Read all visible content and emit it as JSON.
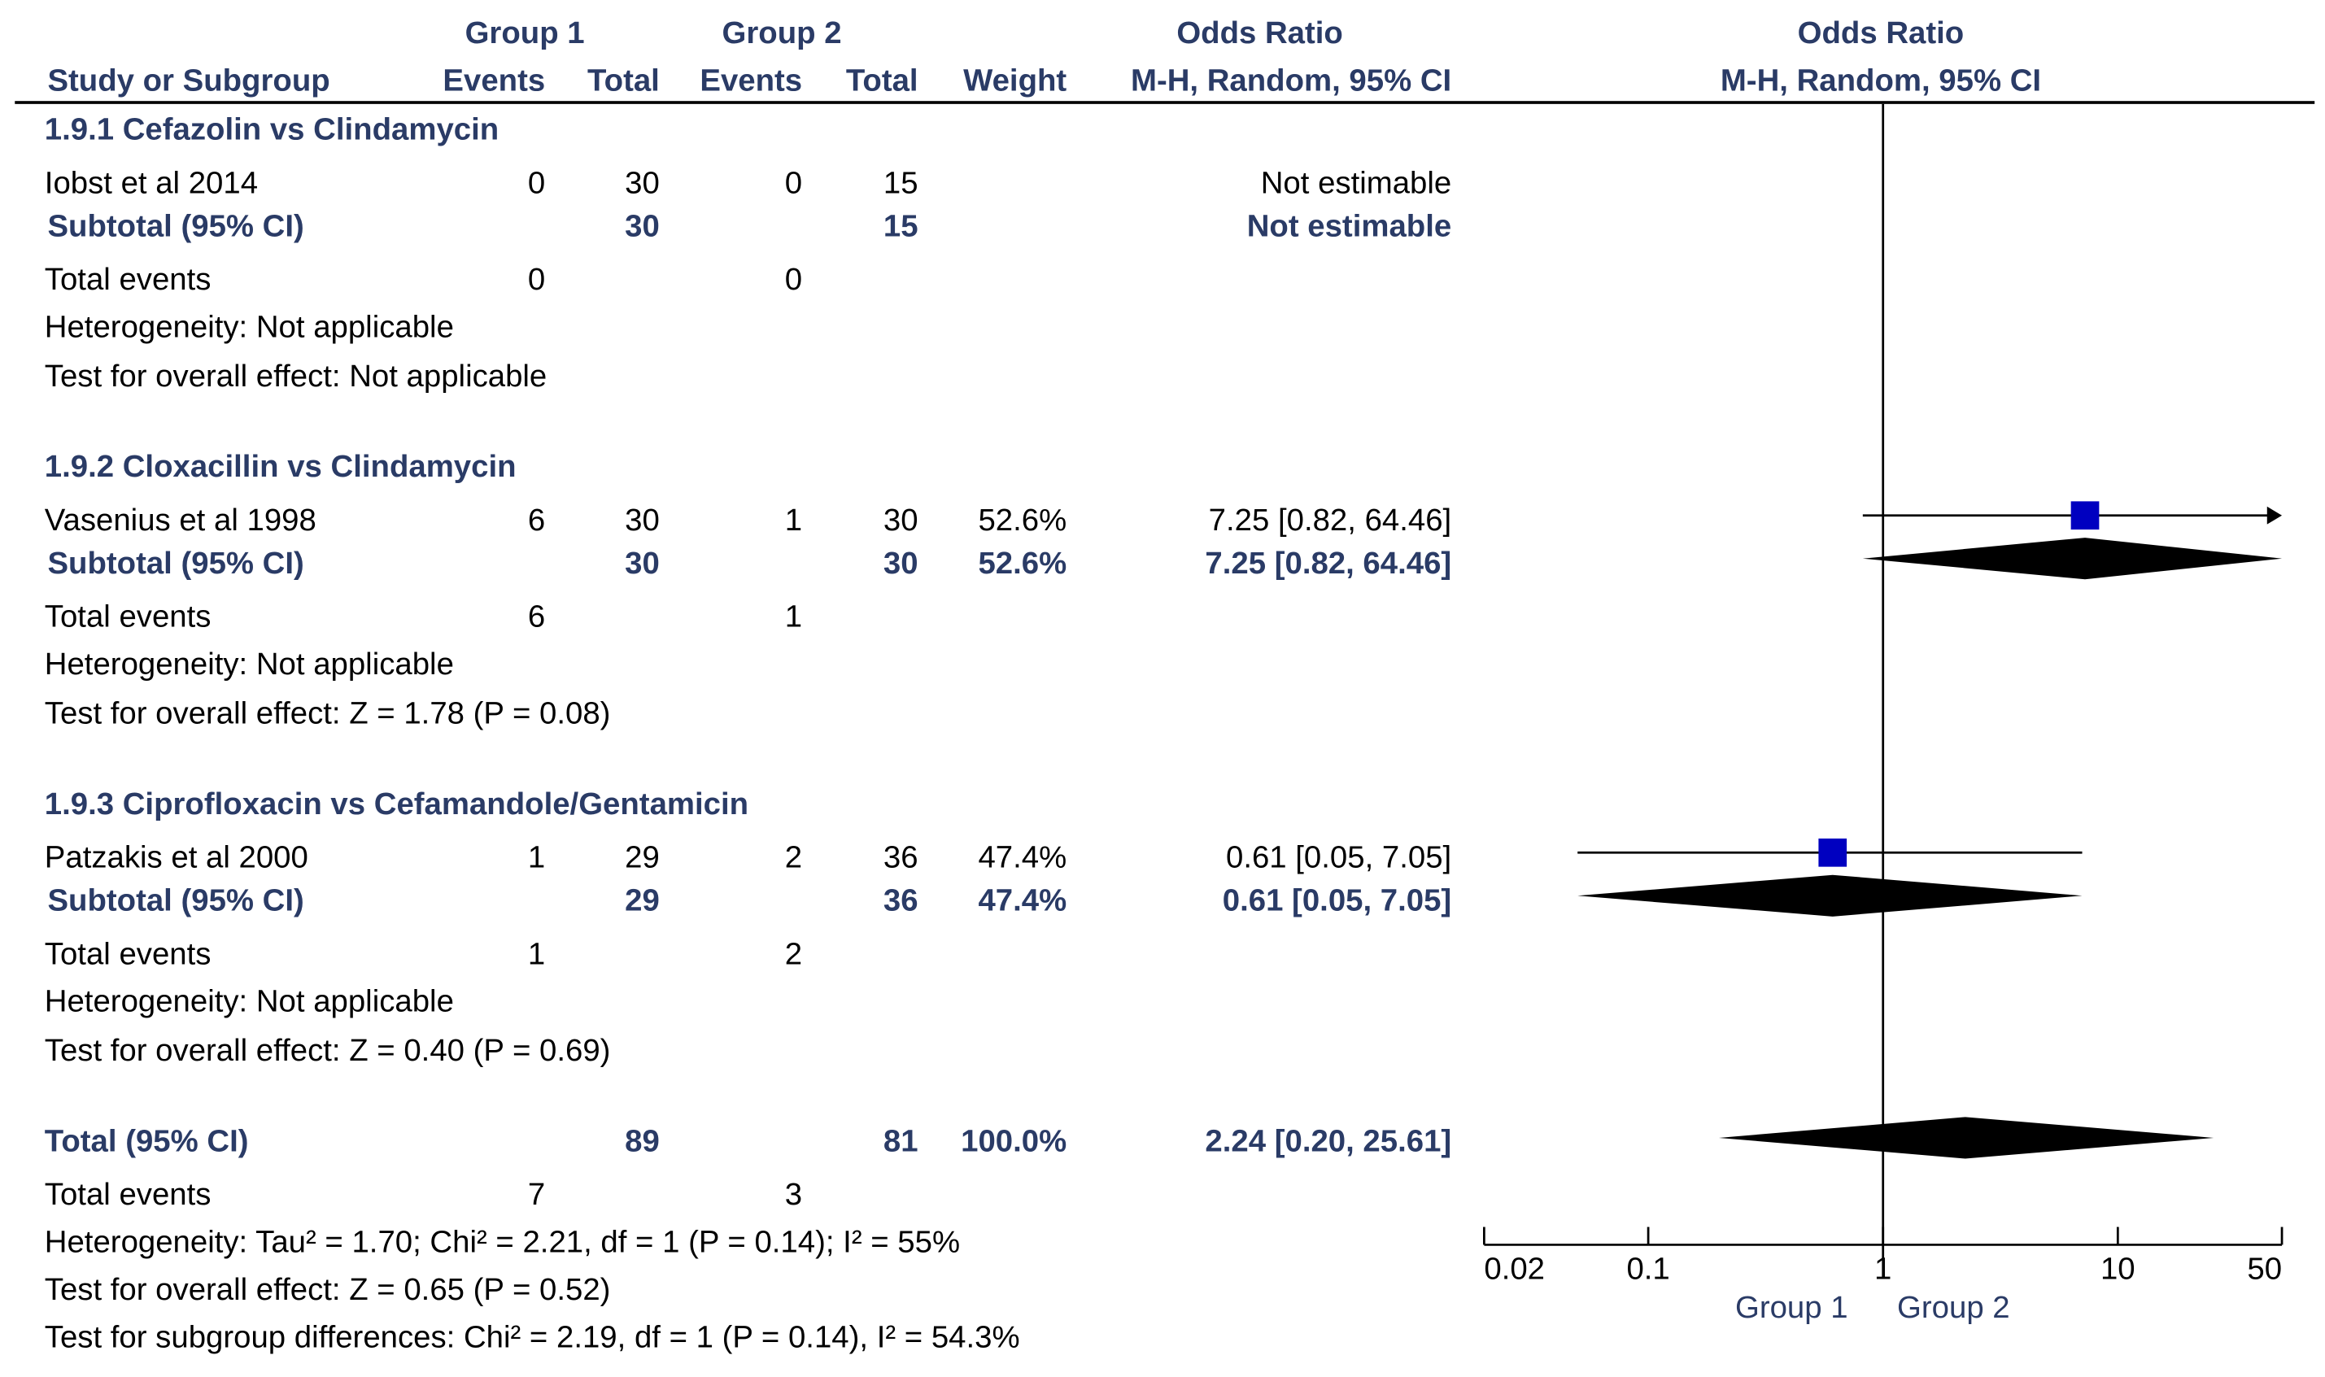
{
  "header": {
    "group1": "Group 1",
    "group2": "Group 2",
    "odds_ratio_left": "Odds Ratio",
    "odds_ratio_right": "Odds Ratio",
    "study": "Study or Subgroup",
    "events1": "Events",
    "total1": "Total",
    "events2": "Events",
    "total2": "Total",
    "weight": "Weight",
    "method_left": "M-H, Random, 95% CI",
    "method_right": "M-H, Random, 95% CI"
  },
  "subgroups": [
    {
      "title": "1.9.1 Cefazolin vs Clindamycin",
      "study": {
        "name": "Iobst et al 2014",
        "e1": "0",
        "t1": "30",
        "e2": "0",
        "t2": "15",
        "weight": "",
        "ci": "Not estimable"
      },
      "subtotal": {
        "label": "Subtotal (95% CI)",
        "t1": "30",
        "t2": "15",
        "weight": "",
        "ci": "Not estimable"
      },
      "events": {
        "label": "Total events",
        "e1": "0",
        "e2": "0"
      },
      "heterogeneity": "Heterogeneity: Not applicable",
      "overall": "Test for overall effect: Not applicable"
    },
    {
      "title": "1.9.2 Cloxacillin vs Clindamycin",
      "study": {
        "name": "Vasenius et al 1998",
        "e1": "6",
        "t1": "30",
        "e2": "1",
        "t2": "30",
        "weight": "52.6%",
        "ci": "7.25 [0.82, 64.46]"
      },
      "subtotal": {
        "label": "Subtotal (95% CI)",
        "t1": "30",
        "t2": "30",
        "weight": "52.6%",
        "ci": "7.25 [0.82, 64.46]"
      },
      "events": {
        "label": "Total events",
        "e1": "6",
        "e2": "1"
      },
      "heterogeneity": "Heterogeneity: Not applicable",
      "overall": "Test for overall effect: Z = 1.78 (P = 0.08)"
    },
    {
      "title": "1.9.3 Ciprofloxacin vs Cefamandole/Gentamicin",
      "study": {
        "name": "Patzakis et al 2000",
        "e1": "1",
        "t1": "29",
        "e2": "2",
        "t2": "36",
        "weight": "47.4%",
        "ci": "0.61 [0.05, 7.05]"
      },
      "subtotal": {
        "label": "Subtotal (95% CI)",
        "t1": "29",
        "t2": "36",
        "weight": "47.4%",
        "ci": "0.61 [0.05, 7.05]"
      },
      "events": {
        "label": "Total events",
        "e1": "1",
        "e2": "2"
      },
      "heterogeneity": "Heterogeneity: Not applicable",
      "overall": "Test for overall effect: Z = 0.40 (P = 0.69)"
    }
  ],
  "total": {
    "label": "Total (95% CI)",
    "t1": "89",
    "t2": "81",
    "weight": "100.0%",
    "ci": "2.24 [0.20, 25.61]",
    "events_label": "Total events",
    "e1": "7",
    "e2": "3",
    "heterogeneity": "Heterogeneity: Tau² = 1.70; Chi² = 2.21, df = 1 (P = 0.14); I² = 55%",
    "overall": "Test for overall effect: Z = 0.65 (P = 0.52)",
    "subgroup_diff": "Test for subgroup differences: Chi² = 2.19, df = 1 (P = 0.14), I² = 54.3%"
  },
  "chart_data": {
    "type": "forest",
    "title": "Odds Ratio M-H, Random, 95% CI",
    "scale": "log",
    "xlim": [
      0.02,
      50
    ],
    "ticks": [
      0.02,
      0.1,
      1,
      10,
      50
    ],
    "tick_labels": [
      "0.02",
      "0.1",
      "1",
      "10",
      "50"
    ],
    "favours_left": "Group 1",
    "favours_right": "Group 2",
    "studies": [
      {
        "name": "Vasenius et al 1998",
        "or": 7.25,
        "lo": 0.82,
        "hi": 64.46,
        "weight": 52.6,
        "arrow_right": true
      },
      {
        "name": "Patzakis et al 2000",
        "or": 0.61,
        "lo": 0.05,
        "hi": 7.05,
        "weight": 47.4
      }
    ],
    "diamonds": [
      {
        "name": "Subtotal 1.9.2",
        "or": 7.25,
        "lo": 0.82,
        "hi": 64.46
      },
      {
        "name": "Subtotal 1.9.3",
        "or": 0.61,
        "lo": 0.05,
        "hi": 7.05
      },
      {
        "name": "Total",
        "or": 2.24,
        "lo": 0.2,
        "hi": 25.61
      }
    ],
    "colors": {
      "square": "#0000c0",
      "diamond": "#000000",
      "axis": "#000000",
      "legend": "#2a3b66"
    }
  }
}
